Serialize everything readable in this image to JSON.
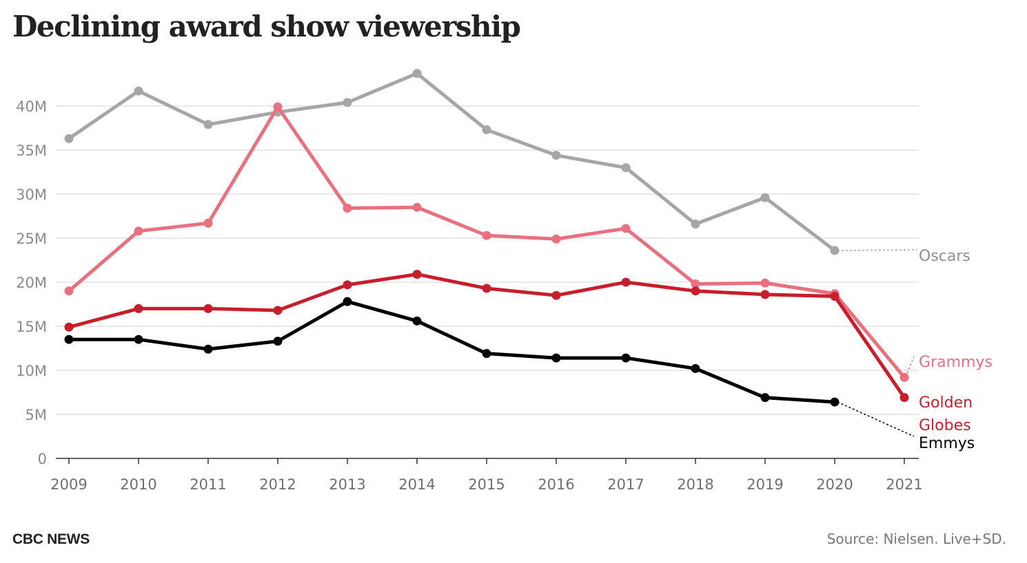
{
  "title": "Declining award show viewership",
  "brand": "CBC NEWS",
  "source": "Source: Nielsen. Live+SD.",
  "chart_data": {
    "type": "line",
    "x": [
      "2009",
      "2010",
      "2011",
      "2012",
      "2013",
      "2014",
      "2015",
      "2016",
      "2017",
      "2018",
      "2019",
      "2020",
      "2021"
    ],
    "ylim": [
      0,
      45000000
    ],
    "yticks": [
      0,
      5000000,
      10000000,
      15000000,
      20000000,
      25000000,
      30000000,
      35000000,
      40000000
    ],
    "ytick_labels": [
      "0",
      "5M",
      "10M",
      "15M",
      "20M",
      "25M",
      "30M",
      "35M",
      "40M"
    ],
    "grid": true,
    "series": [
      {
        "name": "Oscars",
        "label_lines": [
          "Oscars"
        ],
        "color": "#a6a6a6",
        "values": [
          36300000,
          41700000,
          37900000,
          39300000,
          40400000,
          43700000,
          37300000,
          34400000,
          33000000,
          26600000,
          29600000,
          23600000,
          null
        ]
      },
      {
        "name": "Grammys",
        "label_lines": [
          "Grammys"
        ],
        "color": "#e8707f",
        "values": [
          19000000,
          25800000,
          26700000,
          39900000,
          28400000,
          28500000,
          25300000,
          24900000,
          26100000,
          19800000,
          19900000,
          18700000,
          9200000
        ]
      },
      {
        "name": "Golden Globes",
        "label_lines": [
          "Golden",
          "Globes"
        ],
        "color": "#c81e2b",
        "values": [
          14900000,
          17000000,
          17000000,
          16800000,
          19700000,
          20900000,
          19300000,
          18500000,
          20000000,
          19000000,
          18600000,
          18400000,
          6900000
        ]
      },
      {
        "name": "Emmys",
        "label_lines": [
          "Emmys"
        ],
        "color": "#000000",
        "values": [
          13500000,
          13500000,
          12400000,
          13300000,
          17800000,
          15600000,
          11900000,
          11400000,
          11400000,
          10200000,
          6900000,
          6400000,
          null
        ]
      }
    ]
  }
}
